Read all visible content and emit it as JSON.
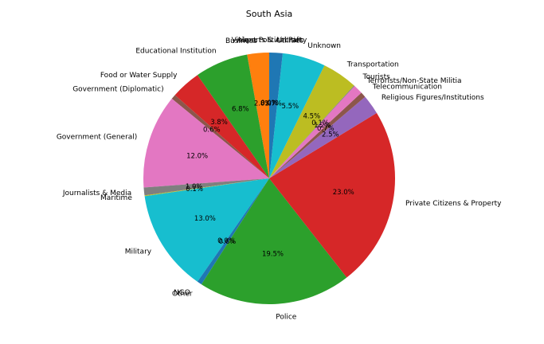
{
  "chart_data": {
    "type": "pie",
    "title": "South Asia",
    "slices": [
      {
        "label": "Airports & Aircraft",
        "value": 0.0,
        "pct_text": "0.0%",
        "color": "#1f77b4"
      },
      {
        "label": "Business",
        "value": 2.8,
        "pct_text": "2.8%",
        "color": "#ff7f0e"
      },
      {
        "label": "Educational Institution",
        "value": 6.8,
        "pct_text": "6.8%",
        "color": "#2ca02c"
      },
      {
        "label": "Food or Water Supply",
        "value": 3.8,
        "pct_text": "3.8%",
        "color": "#d62728"
      },
      {
        "label": "Government (Diplomatic)",
        "value": 0.6,
        "pct_text": "0.6%",
        "color": "#8c564b"
      },
      {
        "label": "Government (General)",
        "value": 12.0,
        "pct_text": "12.0%",
        "color": "#e377c2"
      },
      {
        "label": "Journalists & Media",
        "value": 1.0,
        "pct_text": "1.0%",
        "color": "#7f7f7f"
      },
      {
        "label": "Maritime",
        "value": 0.1,
        "pct_text": "0.1%",
        "color": "#bcbd22"
      },
      {
        "label": "Military",
        "value": 13.0,
        "pct_text": "13.0%",
        "color": "#17becf"
      },
      {
        "label": "NGO",
        "value": 0.0,
        "pct_text": "0.0%",
        "color": "#9467bd"
      },
      {
        "label": "Other",
        "value": 0.6,
        "pct_text": "0.6%",
        "color": "#1f77b4"
      },
      {
        "label": "Police",
        "value": 19.5,
        "pct_text": "19.5%",
        "color": "#2ca02c"
      },
      {
        "label": "Private Citizens & Property",
        "value": 23.0,
        "pct_text": "23.0%",
        "color": "#d62728"
      },
      {
        "label": "Religious Figures/Institutions",
        "value": 2.5,
        "pct_text": "2.5%",
        "color": "#9467bd"
      },
      {
        "label": "Telecommunication",
        "value": 0.7,
        "pct_text": "0.7%",
        "color": "#8c564b"
      },
      {
        "label": "Terrorists/Non-State Militia",
        "value": 1.2,
        "pct_text": "1.2%",
        "color": "#e377c2"
      },
      {
        "label": "Tourists",
        "value": 0.1,
        "pct_text": "0.1%",
        "color": "#7f7f7f"
      },
      {
        "label": "Transportation",
        "value": 4.5,
        "pct_text": "4.5%",
        "color": "#bcbd22"
      },
      {
        "label": "Unknown",
        "value": 5.5,
        "pct_text": "5.5%",
        "color": "#17becf"
      },
      {
        "label": "Utilities",
        "value": 1.7,
        "pct_text": "1.7%",
        "color": "#1f77b4"
      },
      {
        "label": "Violent Political Party",
        "value": 0.0,
        "pct_text": "0.0%",
        "color": "#ff7f0e"
      }
    ],
    "start_angle_deg": 90,
    "direction": "counterclockwise",
    "legend": "none"
  }
}
